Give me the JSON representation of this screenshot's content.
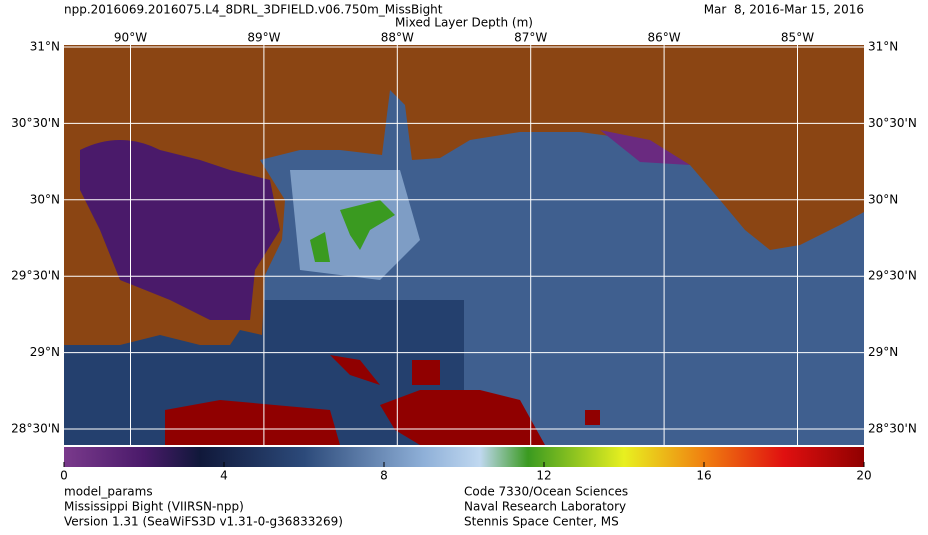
{
  "header": {
    "title": "npp.2016069.2016075.L4_8DRL_3DFIELD.v06.750m_MissBight",
    "subtitle": "Mixed Layer Depth (m)",
    "date_range": "Mar  8, 2016-Mar 15, 2016"
  },
  "map": {
    "longitude_labels": [
      "90°W",
      "89°W",
      "88°W",
      "87°W",
      "86°W",
      "85°W"
    ],
    "latitude_labels": [
      "31°N",
      "30°30'N",
      "30°N",
      "29°30'N",
      "29°N",
      "28°30'N"
    ]
  },
  "colorbar": {
    "lim": [
      0,
      20
    ],
    "ticks": [
      0,
      4,
      8,
      12,
      16,
      20
    ]
  },
  "footer": {
    "left": [
      "model_params",
      "Mississippi Bight (VIIRSN-npp)",
      "Version 1.31 (SeaWiFS3D v1.31-0-g36833269)"
    ],
    "right": [
      "Code 7330/Ocean Sciences",
      "Naval Research Laboratory",
      "Stennis Space Center, MS"
    ]
  }
}
